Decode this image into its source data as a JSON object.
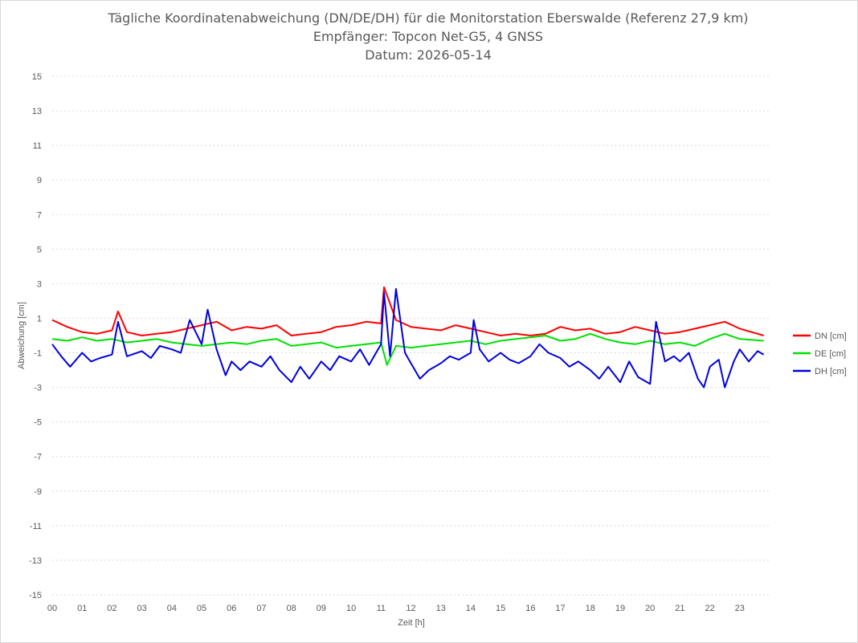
{
  "chart_data": {
    "type": "line",
    "title": "Tägliche Koordinatenabweichung (DN/DE/DH) für die Monitorstation Eberswalde (Referenz 27,9 km)",
    "subtitle_line1": "Empfänger: Topcon Net-G5, 4 GNSS",
    "subtitle_line2": "Datum: 2026-05-14",
    "xlabel": "Zeit [h]",
    "ylabel": "Abweichung [cm]",
    "ylim": [
      -15,
      15
    ],
    "xlim": [
      0,
      24
    ],
    "yticks": [
      "15",
      "13",
      "11",
      "9",
      "7",
      "5",
      "3",
      "1",
      "-1",
      "-3",
      "-5",
      "-7",
      "-9",
      "-11",
      "-13",
      "-15"
    ],
    "xticks": [
      "00",
      "01",
      "02",
      "03",
      "04",
      "05",
      "06",
      "07",
      "08",
      "09",
      "10",
      "11",
      "12",
      "13",
      "14",
      "15",
      "16",
      "17",
      "18",
      "19",
      "20",
      "21",
      "22",
      "23"
    ],
    "grid": "horizontal dotted",
    "legend_position": "right",
    "series": [
      {
        "name": "DN [cm]",
        "color": "#ff0000",
        "x": [
          0,
          0.5,
          1,
          1.5,
          2,
          2.2,
          2.5,
          3,
          3.5,
          4,
          4.5,
          5,
          5.5,
          6,
          6.5,
          7,
          7.5,
          8,
          8.5,
          9,
          9.5,
          10,
          10.5,
          11,
          11.1,
          11.5,
          12,
          12.5,
          13,
          13.5,
          14,
          14.5,
          15,
          15.5,
          16,
          16.5,
          17,
          17.5,
          18,
          18.5,
          19,
          19.5,
          20,
          20.5,
          21,
          21.5,
          22,
          22.5,
          23,
          23.8
        ],
        "values": [
          0.9,
          0.5,
          0.2,
          0.1,
          0.3,
          1.4,
          0.2,
          0.0,
          0.1,
          0.2,
          0.4,
          0.6,
          0.8,
          0.3,
          0.5,
          0.4,
          0.6,
          0.0,
          0.1,
          0.2,
          0.5,
          0.6,
          0.8,
          0.7,
          2.8,
          0.9,
          0.5,
          0.4,
          0.3,
          0.6,
          0.4,
          0.2,
          0.0,
          0.1,
          0.0,
          0.1,
          0.5,
          0.3,
          0.4,
          0.1,
          0.2,
          0.5,
          0.3,
          0.1,
          0.2,
          0.4,
          0.6,
          0.8,
          0.4,
          0.0
        ]
      },
      {
        "name": "DE [cm]",
        "color": "#00e000",
        "x": [
          0,
          0.5,
          1,
          1.5,
          2,
          2.5,
          3,
          3.5,
          4,
          4.5,
          5,
          5.5,
          6,
          6.5,
          7,
          7.5,
          8,
          8.5,
          9,
          9.5,
          10,
          10.5,
          11,
          11.2,
          11.5,
          12,
          12.5,
          13,
          13.5,
          14,
          14.5,
          15,
          15.5,
          16,
          16.5,
          17,
          17.5,
          18,
          18.5,
          19,
          19.5,
          20,
          20.5,
          21,
          21.5,
          22,
          22.5,
          23,
          23.8
        ],
        "values": [
          -0.2,
          -0.3,
          -0.1,
          -0.3,
          -0.2,
          -0.4,
          -0.3,
          -0.2,
          -0.4,
          -0.5,
          -0.6,
          -0.5,
          -0.4,
          -0.5,
          -0.3,
          -0.2,
          -0.6,
          -0.5,
          -0.4,
          -0.7,
          -0.6,
          -0.5,
          -0.4,
          -1.7,
          -0.6,
          -0.7,
          -0.6,
          -0.5,
          -0.4,
          -0.3,
          -0.5,
          -0.3,
          -0.2,
          -0.1,
          0.0,
          -0.3,
          -0.2,
          0.1,
          -0.2,
          -0.4,
          -0.5,
          -0.3,
          -0.5,
          -0.4,
          -0.6,
          -0.2,
          0.1,
          -0.2,
          -0.3
        ]
      },
      {
        "name": "DH [cm]",
        "color": "#0000e0",
        "x": [
          0,
          0.3,
          0.6,
          1,
          1.3,
          1.6,
          2,
          2.2,
          2.5,
          3,
          3.3,
          3.6,
          4,
          4.3,
          4.6,
          5,
          5.2,
          5.5,
          5.8,
          6,
          6.3,
          6.6,
          7,
          7.3,
          7.6,
          8,
          8.3,
          8.6,
          9,
          9.3,
          9.6,
          10,
          10.3,
          10.6,
          11,
          11.1,
          11.3,
          11.5,
          11.8,
          12,
          12.3,
          12.6,
          13,
          13.3,
          13.6,
          14,
          14.1,
          14.3,
          14.6,
          15,
          15.3,
          15.6,
          16,
          16.3,
          16.6,
          17,
          17.3,
          17.6,
          18,
          18.3,
          18.6,
          19,
          19.3,
          19.6,
          20,
          20.2,
          20.5,
          20.8,
          21,
          21.3,
          21.6,
          21.8,
          22,
          22.3,
          22.5,
          22.8,
          23,
          23.3,
          23.6,
          23.8
        ],
        "values": [
          -0.5,
          -1.2,
          -1.8,
          -1.0,
          -1.5,
          -1.3,
          -1.1,
          0.8,
          -1.2,
          -0.9,
          -1.3,
          -0.6,
          -0.8,
          -1.0,
          0.9,
          -0.5,
          1.5,
          -0.8,
          -2.3,
          -1.5,
          -2.0,
          -1.5,
          -1.8,
          -1.2,
          -2.0,
          -2.7,
          -1.8,
          -2.5,
          -1.5,
          -2.0,
          -1.2,
          -1.5,
          -0.8,
          -1.7,
          -0.5,
          2.5,
          -1.2,
          2.7,
          -1.0,
          -1.6,
          -2.5,
          -2.0,
          -1.6,
          -1.2,
          -1.4,
          -1.0,
          0.9,
          -0.8,
          -1.5,
          -1.0,
          -1.4,
          -1.6,
          -1.2,
          -0.5,
          -1.0,
          -1.3,
          -1.8,
          -1.5,
          -2.0,
          -2.5,
          -1.8,
          -2.7,
          -1.5,
          -2.4,
          -2.8,
          0.8,
          -1.5,
          -1.2,
          -1.5,
          -1.0,
          -2.5,
          -3.0,
          -1.8,
          -1.4,
          -3.0,
          -1.5,
          -0.8,
          -1.5,
          -0.9,
          -1.1
        ]
      }
    ]
  }
}
